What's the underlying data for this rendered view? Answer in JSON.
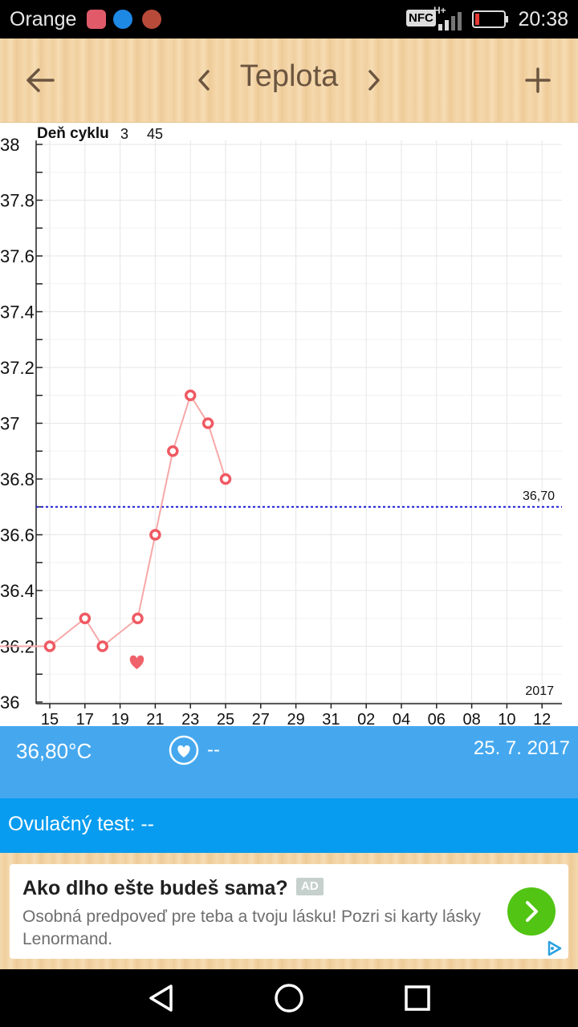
{
  "status_bar": {
    "carrier": "Orange",
    "time": "20:38",
    "nfc_label": "NFC",
    "network_label": "H+"
  },
  "toolbar": {
    "title": "Teplota",
    "back_icon": "arrow-left-icon",
    "prev_icon": "chevron-left-icon",
    "next_icon": "chevron-right-icon",
    "add_icon": "plus-icon"
  },
  "chart_data": {
    "type": "line",
    "cycle_label": "Deň cyklu",
    "cycle_numbers": [
      "3",
      "45"
    ],
    "year_label": "2017",
    "y_ticks": [
      "38",
      "37.8",
      "37.6",
      "37.4",
      "37.2",
      "37",
      "36.8",
      "36.6",
      "36.4",
      "36.2",
      "36"
    ],
    "ylim": [
      36,
      38
    ],
    "x_tick_labels": [
      "15",
      "17",
      "19",
      "21",
      "23",
      "25",
      "27",
      "29",
      "31",
      "02",
      "04",
      "06",
      "08",
      "10",
      "12"
    ],
    "x_days": [
      15,
      16,
      17,
      18,
      19,
      20,
      21,
      22,
      23,
      24,
      25
    ],
    "temperatures": [
      36.2,
      null,
      36.3,
      36.2,
      null,
      36.3,
      36.6,
      36.9,
      37.1,
      37.0,
      36.8
    ],
    "coverline_value": 36.7,
    "coverline_label": "36,70",
    "heart_marker_day": 20,
    "line_color": "#f7a8a8",
    "marker_color": "#ef5a63",
    "coverline_color": "#1a1ad6"
  },
  "info": {
    "temperature": "36,80°C",
    "heart_value": "--",
    "date": "25. 7. 2017"
  },
  "ovulation": {
    "label": "Ovulačný test: --"
  },
  "ad": {
    "title": "Ako dlho ešte budeš sama?",
    "badge": "AD",
    "text": "Osobná predpoveď pre teba a tvoju lásku! Pozri si karty lásky Lenormand."
  }
}
